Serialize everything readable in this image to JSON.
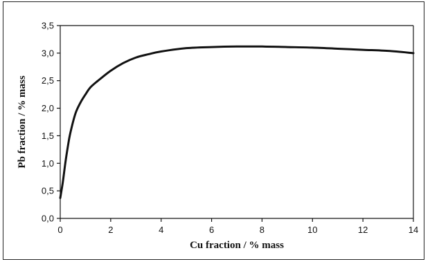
{
  "chart_data": {
    "type": "line",
    "title": "",
    "xlabel": "Cu fraction / % mass",
    "ylabel": "Pb fraction / % mass",
    "xlim": [
      0,
      14
    ],
    "ylim": [
      0,
      3.5
    ],
    "x_ticks": [
      0,
      2,
      4,
      6,
      8,
      10,
      12,
      14
    ],
    "y_ticks": [
      0.0,
      0.5,
      1.0,
      1.5,
      2.0,
      2.5,
      3.0,
      3.5
    ],
    "x_tick_labels": [
      "0",
      "2",
      "4",
      "6",
      "8",
      "10",
      "12",
      "14"
    ],
    "y_tick_labels": [
      "0,0",
      "0,5",
      "1,0",
      "1,5",
      "2,0",
      "2,5",
      "3,0",
      "3,5"
    ],
    "grid": false,
    "series": [
      {
        "x": [
          0.0,
          0.1,
          0.2,
          0.3,
          0.4,
          0.6,
          0.8,
          1.0,
          1.2,
          1.5,
          2.0,
          2.5,
          3.0,
          3.5,
          4.0,
          5.0,
          6.0,
          7.0,
          8.0,
          9.0,
          10.0,
          11.0,
          12.0,
          13.0,
          14.0
        ],
        "y": [
          0.37,
          0.65,
          1.0,
          1.3,
          1.55,
          1.9,
          2.1,
          2.25,
          2.38,
          2.5,
          2.68,
          2.82,
          2.92,
          2.98,
          3.03,
          3.09,
          3.11,
          3.12,
          3.12,
          3.11,
          3.1,
          3.08,
          3.06,
          3.04,
          3.0
        ]
      }
    ]
  }
}
